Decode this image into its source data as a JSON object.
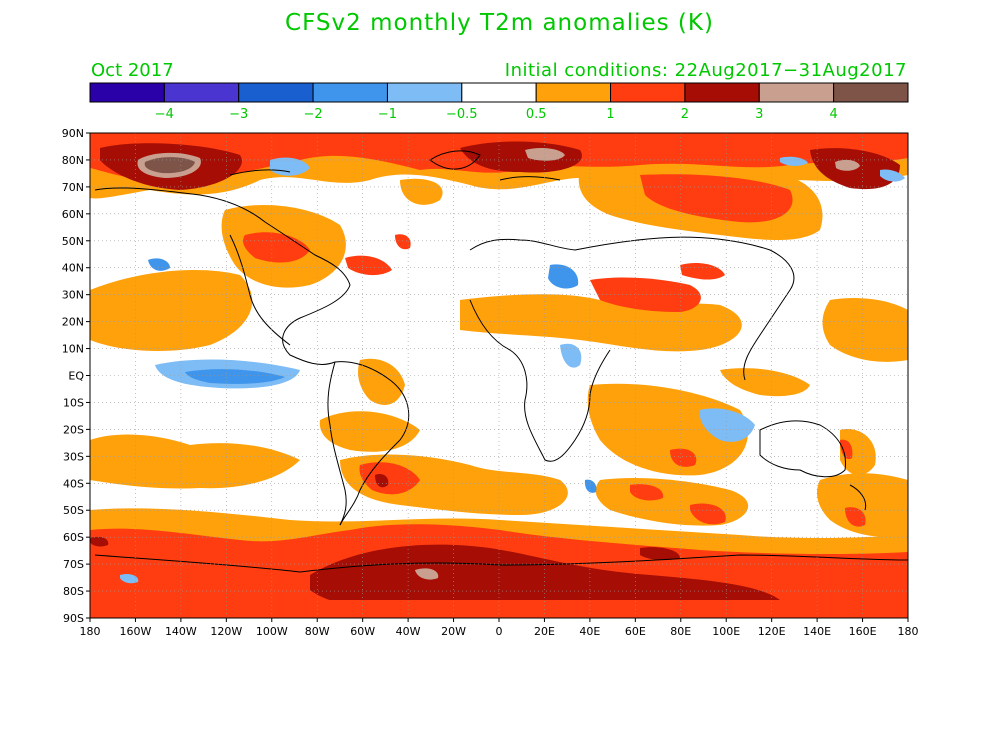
{
  "title": "CFSv2 monthly T2m anomalies (K)",
  "forecast_month": "Oct 2017",
  "initial_conditions": "Initial conditions: 22Aug2017−31Aug2017",
  "colorbar": {
    "colors": [
      "#2a00a8",
      "#4a35d0",
      "#1a5fd0",
      "#3f95ec",
      "#7dbcf5",
      "#ffffff",
      "#ffa10a",
      "#ff3d10",
      "#a50d05",
      "#c9a090",
      "#7d5447"
    ],
    "labels": [
      "−4",
      "−3",
      "−2",
      "−1",
      "−0.5",
      "0.5",
      "1",
      "2",
      "3",
      "4"
    ]
  },
  "map": {
    "lat_labels": [
      "90N",
      "80N",
      "70N",
      "60N",
      "50N",
      "40N",
      "30N",
      "20N",
      "10N",
      "EQ",
      "10S",
      "20S",
      "30S",
      "40S",
      "50S",
      "60S",
      "70S",
      "80S",
      "90S"
    ],
    "lon_labels": [
      "180",
      "160W",
      "140W",
      "120W",
      "100W",
      "80W",
      "60W",
      "40W",
      "20W",
      "0",
      "20E",
      "40E",
      "60E",
      "80E",
      "100E",
      "120E",
      "140E",
      "160E",
      "180"
    ]
  }
}
